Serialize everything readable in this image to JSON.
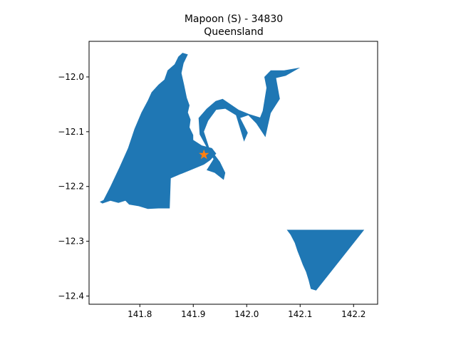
{
  "chart_data": {
    "type": "map",
    "title_line1": "Mapoon (S) - 34830",
    "title_line2": "Queensland",
    "xlabel": "",
    "ylabel": "",
    "xlim": [
      141.705,
      142.245
    ],
    "ylim": [
      -12.415,
      -11.935
    ],
    "x_ticks": [
      {
        "value": 141.8,
        "label": "141.8"
      },
      {
        "value": 141.9,
        "label": "141.9"
      },
      {
        "value": 142.0,
        "label": "142.0"
      },
      {
        "value": 142.1,
        "label": "142.1"
      },
      {
        "value": 142.2,
        "label": "142.2"
      }
    ],
    "y_ticks": [
      {
        "value": -12.0,
        "label": "−12.0"
      },
      {
        "value": -12.1,
        "label": "−12.1"
      },
      {
        "value": -12.2,
        "label": "−12.2"
      },
      {
        "value": -12.3,
        "label": "−12.3"
      },
      {
        "value": -12.4,
        "label": "−12.4"
      }
    ],
    "grid": false,
    "fill_color": "#1f77b4",
    "marker": {
      "type": "star",
      "color": "#ff7f0e",
      "lon": 141.92,
      "lat": -12.142
    },
    "regions": [
      {
        "name": "mainland-west",
        "coords": [
          [
            141.725,
            -12.228
          ],
          [
            141.732,
            -12.225
          ],
          [
            141.745,
            -12.2
          ],
          [
            141.762,
            -12.165
          ],
          [
            141.778,
            -12.13
          ],
          [
            141.79,
            -12.095
          ],
          [
            141.803,
            -12.065
          ],
          [
            141.815,
            -12.043
          ],
          [
            141.822,
            -12.028
          ],
          [
            141.835,
            -12.014
          ],
          [
            141.846,
            -12.005
          ],
          [
            141.852,
            -11.988
          ],
          [
            141.865,
            -11.977
          ],
          [
            141.872,
            -11.963
          ],
          [
            141.88,
            -11.956
          ],
          [
            141.89,
            -11.959
          ],
          [
            141.882,
            -11.975
          ],
          [
            141.878,
            -11.993
          ],
          [
            141.883,
            -12.015
          ],
          [
            141.888,
            -12.038
          ],
          [
            141.893,
            -12.052
          ],
          [
            141.89,
            -12.065
          ],
          [
            141.895,
            -12.078
          ],
          [
            141.893,
            -12.092
          ],
          [
            141.9,
            -12.106
          ],
          [
            141.9,
            -12.115
          ],
          [
            141.916,
            -12.125
          ],
          [
            141.935,
            -12.13
          ],
          [
            141.943,
            -12.14
          ],
          [
            141.932,
            -12.152
          ],
          [
            141.92,
            -12.16
          ],
          [
            141.895,
            -12.17
          ],
          [
            141.875,
            -12.178
          ],
          [
            141.858,
            -12.185
          ],
          [
            141.856,
            -12.24
          ],
          [
            141.835,
            -12.24
          ],
          [
            141.815,
            -12.241
          ],
          [
            141.798,
            -12.236
          ],
          [
            141.78,
            -12.233
          ],
          [
            141.773,
            -12.226
          ],
          [
            141.76,
            -12.23
          ],
          [
            141.745,
            -12.226
          ],
          [
            141.73,
            -12.231
          ]
        ]
      },
      {
        "name": "river-strip",
        "coords": [
          [
            141.91,
            -12.075
          ],
          [
            141.925,
            -12.058
          ],
          [
            141.942,
            -12.044
          ],
          [
            141.955,
            -12.04
          ],
          [
            141.985,
            -12.06
          ],
          [
            142.005,
            -12.068
          ],
          [
            142.025,
            -12.074
          ],
          [
            142.03,
            -12.062
          ],
          [
            142.037,
            -12.02
          ],
          [
            142.033,
            -12.0
          ],
          [
            142.045,
            -11.988
          ],
          [
            142.07,
            -11.988
          ],
          [
            142.1,
            -11.983
          ],
          [
            142.073,
            -11.998
          ],
          [
            142.055,
            -12.002
          ],
          [
            142.062,
            -12.04
          ],
          [
            142.045,
            -12.066
          ],
          [
            142.04,
            -12.088
          ],
          [
            142.035,
            -12.11
          ],
          [
            142.018,
            -12.085
          ],
          [
            142.003,
            -12.07
          ],
          [
            141.988,
            -12.075
          ],
          [
            142.002,
            -12.102
          ],
          [
            141.995,
            -12.118
          ],
          [
            141.98,
            -12.07
          ],
          [
            141.96,
            -12.058
          ],
          [
            141.943,
            -12.06
          ],
          [
            141.928,
            -12.08
          ],
          [
            141.92,
            -12.1
          ],
          [
            141.93,
            -12.13
          ],
          [
            141.94,
            -12.142
          ],
          [
            141.95,
            -12.155
          ],
          [
            141.96,
            -12.175
          ],
          [
            141.957,
            -12.188
          ],
          [
            141.94,
            -12.175
          ],
          [
            141.925,
            -12.17
          ],
          [
            141.938,
            -12.15
          ],
          [
            141.926,
            -12.13
          ],
          [
            141.912,
            -12.105
          ]
        ]
      },
      {
        "name": "southeast",
        "coords": [
          [
            142.075,
            -12.279
          ],
          [
            142.22,
            -12.279
          ],
          [
            142.13,
            -12.39
          ],
          [
            142.12,
            -12.387
          ],
          [
            142.116,
            -12.372
          ],
          [
            142.111,
            -12.356
          ],
          [
            142.105,
            -12.343
          ],
          [
            142.1,
            -12.33
          ],
          [
            142.095,
            -12.318
          ],
          [
            142.09,
            -12.303
          ],
          [
            142.082,
            -12.288
          ]
        ]
      }
    ]
  }
}
